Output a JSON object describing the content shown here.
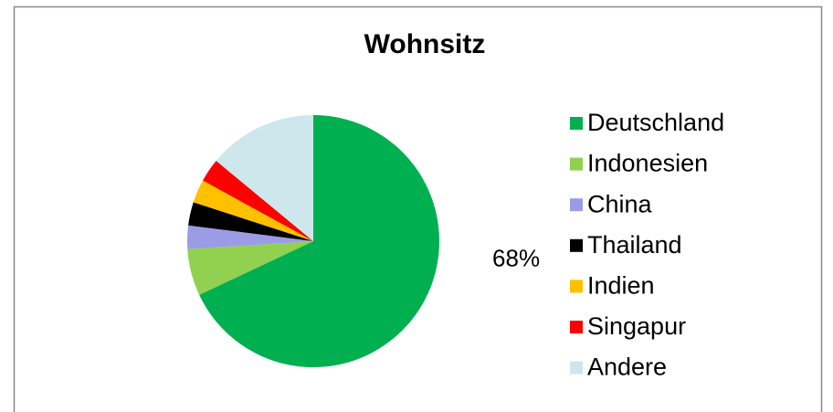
{
  "chart_data": {
    "type": "pie",
    "title": "Wohnsitz",
    "categories": [
      "Deutschland",
      "Indonesien",
      "China",
      "Thailand",
      "Indien",
      "Singapur",
      "Andere"
    ],
    "values": [
      68,
      6,
      3,
      3,
      3,
      3,
      14
    ],
    "value_labels": [
      "68%",
      null,
      null,
      null,
      null,
      null,
      null
    ],
    "colors": [
      "#00b050",
      "#92d050",
      "#9b9be6",
      "#000000",
      "#ffc000",
      "#ff0000",
      "#cde7ec"
    ],
    "legend": "right"
  }
}
